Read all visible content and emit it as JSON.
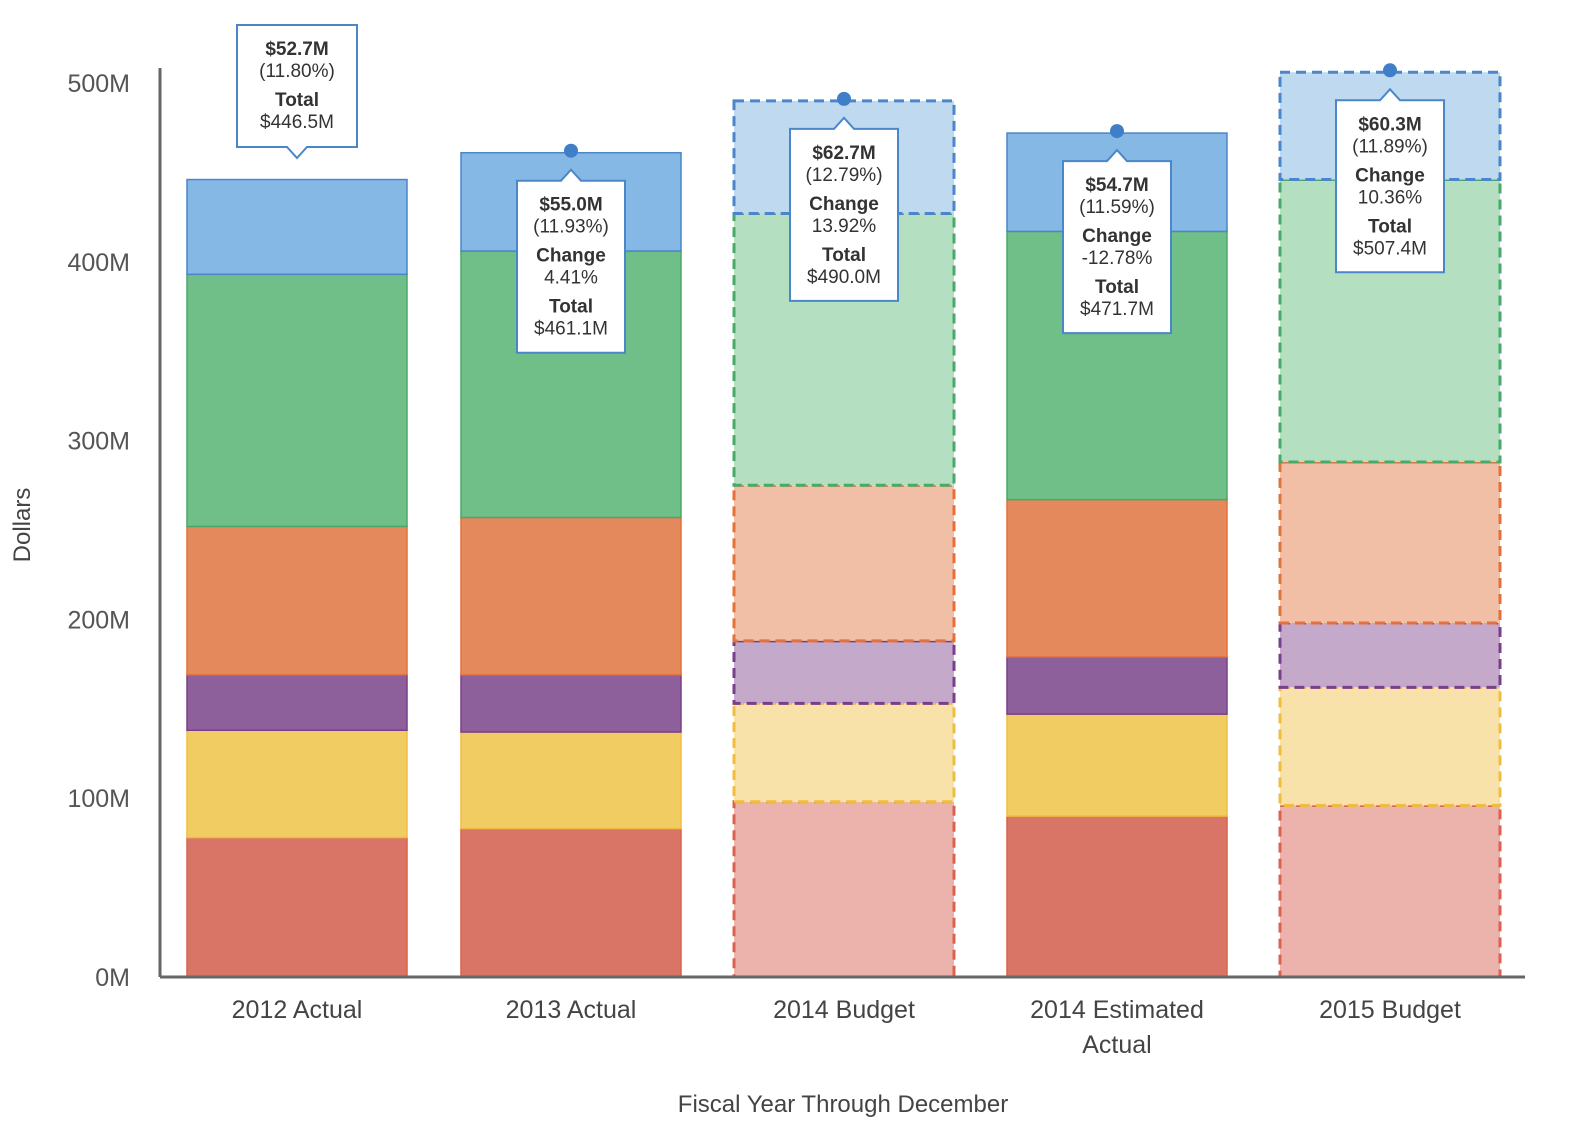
{
  "chart_data": {
    "type": "bar",
    "stacked": true,
    "title": "",
    "xlabel": "Fiscal Year Through December",
    "ylabel": "Dollars",
    "ylim": [
      0,
      500
    ],
    "y_ticks": [
      0,
      100,
      200,
      300,
      400,
      500
    ],
    "y_tick_labels": [
      "0M",
      "100M",
      "200M",
      "300M",
      "400M",
      "500M"
    ],
    "categories": [
      {
        "lines": [
          "2012 Actual"
        ],
        "projected": false
      },
      {
        "lines": [
          "2013 Actual"
        ],
        "projected": false
      },
      {
        "lines": [
          "2014 Budget"
        ],
        "projected": true
      },
      {
        "lines": [
          "2014 Estimated",
          "Actual"
        ],
        "projected": false
      },
      {
        "lines": [
          "2015 Budget"
        ],
        "projected": true
      }
    ],
    "series": [
      {
        "name": "Red segment",
        "color": "#d97566",
        "light": "#ebb3ac",
        "dash": "#d9634f",
        "values": [
          78,
          83,
          98,
          90,
          96
        ]
      },
      {
        "name": "Yellow segment",
        "color": "#f1cc62",
        "light": "#f8e2aa",
        "dash": "#efbe3f",
        "values": [
          60,
          54,
          55,
          57,
          66
        ]
      },
      {
        "name": "Purple segment",
        "color": "#8d5f9b",
        "light": "#c4a9cb",
        "dash": "#7a3f8c",
        "values": [
          31,
          32,
          35,
          32,
          36
        ]
      },
      {
        "name": "Orange segment",
        "color": "#e4895c",
        "light": "#f0bfa6",
        "dash": "#e4703c",
        "values": [
          83,
          88,
          87,
          88,
          90
        ]
      },
      {
        "name": "Green segment",
        "color": "#70bf89",
        "light": "#b4dfc0",
        "dash": "#4aa86a",
        "values": [
          141,
          149,
          152,
          150,
          158
        ]
      },
      {
        "name": "Blue segment",
        "color": "#86b8e6",
        "light": "#bfd9f1",
        "dash": "#4a86c8",
        "values": [
          53,
          55,
          63,
          55,
          60
        ]
      }
    ],
    "tooltips": [
      {
        "value": "$52.7M",
        "pct": "(11.80%)",
        "change_label": "",
        "change": "",
        "total_label": "Total",
        "total": "$446.5M"
      },
      {
        "value": "$55.0M",
        "pct": "(11.93%)",
        "change_label": "Change",
        "change": "4.41%",
        "total_label": "Total",
        "total": "$461.1M"
      },
      {
        "value": "$62.7M",
        "pct": "(12.79%)",
        "change_label": "Change",
        "change": "13.92%",
        "total_label": "Total",
        "total": "$490.0M"
      },
      {
        "value": "$54.7M",
        "pct": "(11.59%)",
        "change_label": "Change",
        "change": "-12.78%",
        "total_label": "Total",
        "total": "$471.7M"
      },
      {
        "value": "$60.3M",
        "pct": "(11.89%)",
        "change_label": "Change",
        "change": "10.36%",
        "total_label": "Total",
        "total": "$507.4M"
      }
    ],
    "colors": {
      "axis": "#666666",
      "tooltip_border": "#4a86c8",
      "marker": "#3f7fc8"
    }
  }
}
